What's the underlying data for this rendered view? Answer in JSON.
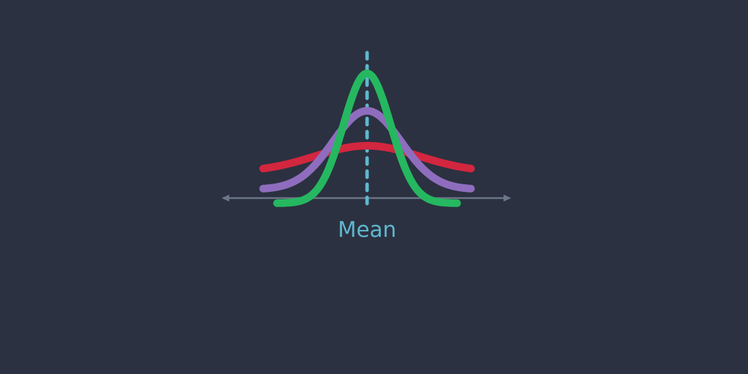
{
  "diagram": {
    "mean_label": "Mean",
    "colors": {
      "background": "#2b3140",
      "axis": "#6d7686",
      "mean_line": "#5fb8cf",
      "mean_text": "#5fb8cf"
    },
    "curves": [
      {
        "id": "wide",
        "color": "#d3263f",
        "relative_peak": 0.42,
        "relative_spread": 2.2,
        "baseline": 0.15
      },
      {
        "id": "medium",
        "color": "#8f6dbe",
        "relative_peak": 0.7,
        "relative_spread": 1.45,
        "baseline": 0.05
      },
      {
        "id": "narrow",
        "color": "#25b860",
        "relative_peak": 1.0,
        "relative_spread": 1.0,
        "baseline": -0.03
      }
    ]
  }
}
